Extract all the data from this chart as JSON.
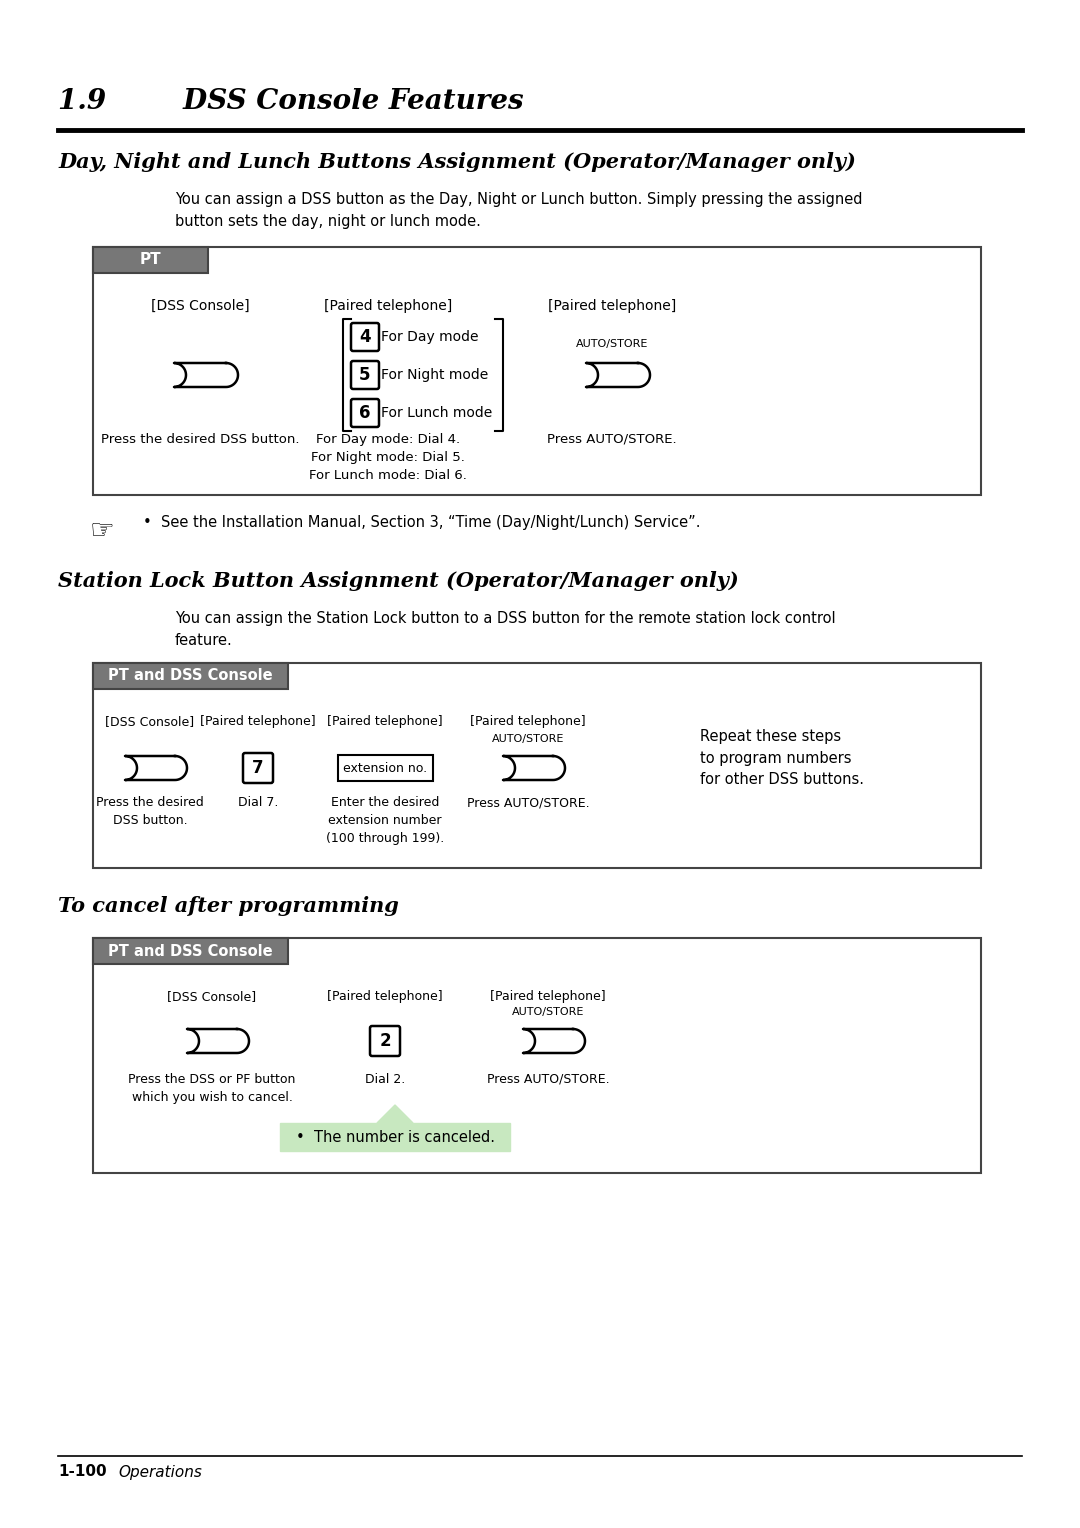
{
  "page_title": "1.9        DSS Console Features",
  "section1_title": "Day, Night and Lunch Buttons Assignment (Operator/Manager only)",
  "section1_body": "You can assign a DSS button as the Day, Night or Lunch button. Simply pressing the assigned\nbutton sets the day, night or lunch mode.",
  "pt_label": "PT",
  "section1_col1_label": "[DSS Console]",
  "section1_col2_label": "[Paired telephone]",
  "section1_col3_label": "[Paired telephone]",
  "section1_keys": [
    "4",
    "5",
    "6"
  ],
  "section1_key_labels": [
    "For Day mode",
    "For Night mode",
    "For Lunch mode"
  ],
  "section1_autostore": "AUTO/STORE",
  "section1_text1": "Press the desired DSS button.",
  "section1_text2": "For Day mode: Dial 4.\nFor Night mode: Dial 5.\nFor Lunch mode: Dial 6.",
  "section1_text3": "Press AUTO/STORE.",
  "note_text": "•  See the Installation Manual, Section 3, “Time (Day/Night/Lunch) Service”.",
  "section2_title": "Station Lock Button Assignment (Operator/Manager only)",
  "section2_body": "You can assign the Station Lock button to a DSS button for the remote station lock control\nfeature.",
  "pt_dss_label": "PT and DSS Console",
  "section2_col1_label": "[DSS Console]",
  "section2_col2_label": "[Paired telephone]",
  "section2_col3_label": "[Paired telephone]",
  "section2_col4_label": "[Paired telephone]",
  "section2_key": "7",
  "section2_ext_label": "extension no.",
  "section2_autostore": "AUTO/STORE",
  "section2_text1": "Press the desired\nDSS button.",
  "section2_text2": "Dial 7.",
  "section2_text3": "Enter the desired\nextension number\n(100 through 199).",
  "section2_text4": "Press AUTO/STORE.",
  "section2_repeat": "Repeat these steps\nto program numbers\nfor other DSS buttons.",
  "section3_title": "To cancel after programming",
  "section3_col1_label": "[DSS Console]",
  "section3_col2_label": "[Paired telephone]",
  "section3_col3_label": "[Paired telephone]",
  "section3_key": "2",
  "section3_autostore": "AUTO/STORE",
  "section3_text1": "Press the DSS or PF button\nwhich you wish to cancel.",
  "section3_text2": "Dial 2.",
  "section3_text3": "Press AUTO/STORE.",
  "section3_note": "•  The number is canceled.",
  "footer_left": "1-100",
  "footer_right": "Operations",
  "bg_color": "#ffffff",
  "header_bar_color": "#777777",
  "box_border_color": "#444444",
  "note_bg": "#c8e8c0"
}
